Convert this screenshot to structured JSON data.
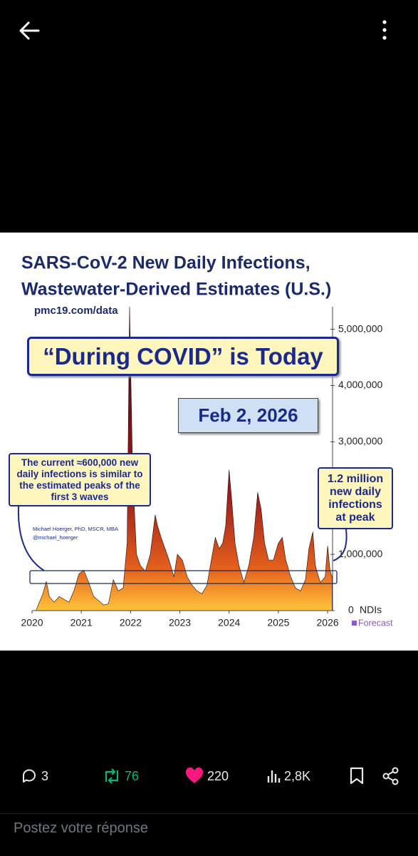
{
  "chart_data": {
    "type": "area",
    "title": [
      "SARS-CoV-2 New Daily Infections,",
      "Wastewater-Derived Estimates (U.S.)"
    ],
    "source": "pmc19.com/data",
    "annotations": {
      "banner": "“During COVID” is Today",
      "date": "Feb 2, 2026",
      "current": "The current ≈600,000 new daily infections is similar to the estimated peaks of the first 3 waves",
      "peak": "1.2 million new daily infections at peak",
      "credit": [
        "Michael Hoerger, PhD, MSCR, MBA",
        "@michael_hoerger"
      ]
    },
    "y_label": "NDIs",
    "x": [
      2020.08,
      2020.15,
      2020.22,
      2020.29,
      2020.35,
      2020.45,
      2020.55,
      2020.65,
      2020.75,
      2020.85,
      2020.95,
      2021.05,
      2021.15,
      2021.25,
      2021.35,
      2021.45,
      2021.55,
      2021.65,
      2021.75,
      2021.85,
      2021.93,
      2021.98,
      2022.04,
      2022.12,
      2022.2,
      2022.3,
      2022.4,
      2022.5,
      2022.55,
      2022.62,
      2022.7,
      2022.78,
      2022.88,
      2022.95,
      2023.05,
      2023.15,
      2023.25,
      2023.35,
      2023.45,
      2023.55,
      2023.65,
      2023.72,
      2023.8,
      2023.87,
      2023.93,
      2024.0,
      2024.05,
      2024.12,
      2024.2,
      2024.3,
      2024.4,
      2024.5,
      2024.58,
      2024.65,
      2024.72,
      2024.8,
      2024.9,
      2025.0,
      2025.08,
      2025.15,
      2025.25,
      2025.35,
      2025.45,
      2025.55,
      2025.62,
      2025.7,
      2025.75,
      2025.85,
      2025.95,
      2026.0,
      2026.05,
      2026.09
    ],
    "values": [
      0,
      150000,
      300000,
      520000,
      250000,
      150000,
      250000,
      200000,
      150000,
      350000,
      650000,
      720000,
      500000,
      250000,
      180000,
      100000,
      120000,
      550000,
      350000,
      400000,
      1200000,
      5400000,
      2500000,
      1000000,
      800000,
      700000,
      1000000,
      1700000,
      1500000,
      1300000,
      1100000,
      900000,
      600000,
      1000000,
      900000,
      600000,
      450000,
      350000,
      300000,
      450000,
      950000,
      1300000,
      1100000,
      1200000,
      1500000,
      2500000,
      2000000,
      1200000,
      800000,
      500000,
      800000,
      1300000,
      2100000,
      1800000,
      1200000,
      900000,
      900000,
      1200000,
      1300000,
      900000,
      600000,
      400000,
      350000,
      550000,
      1100000,
      1400000,
      800000,
      500000,
      600000,
      1150000,
      700000,
      600000
    ],
    "color_gradient": [
      "#3a0812",
      "#9c1c1c",
      "#e4601c",
      "#ffc43a"
    ],
    "forecast": {
      "name": "Forecast",
      "color": "#8a5cc8",
      "x": [
        2026.09,
        2026.1
      ],
      "values": [
        600000,
        550000
      ]
    },
    "xlim": [
      2020,
      2026.1
    ],
    "xticks": [
      2020,
      2021,
      2022,
      2023,
      2024,
      2025,
      2026
    ],
    "ylim": [
      0,
      5400000
    ],
    "yticks": [
      0,
      {
        "value": 1000000,
        "label": "1,000,000"
      },
      {
        "value": 2000000,
        "label": "2,000,000"
      },
      {
        "value": 3000000,
        "label": "3,000,000"
      },
      {
        "value": 4000000,
        "label": "4,000,000"
      },
      {
        "value": 5000000,
        "label": "5,000,000"
      }
    ],
    "grid": false
  },
  "actions": {
    "replies": "3",
    "reposts": "76",
    "likes": "220",
    "views": "2,8K"
  },
  "reply_placeholder": "Postez votre réponse"
}
